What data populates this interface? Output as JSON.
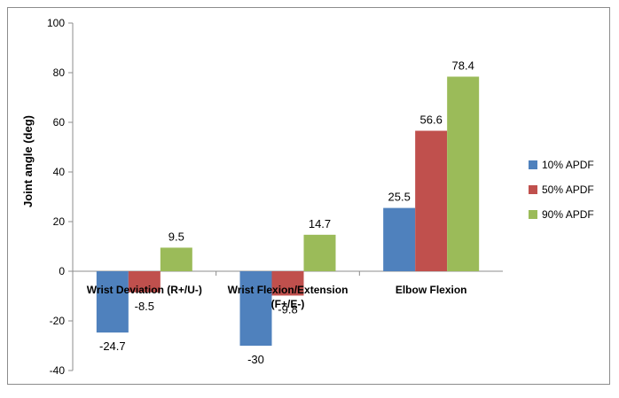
{
  "chart_data": {
    "type": "bar",
    "title": "",
    "xlabel": "",
    "ylabel": "Joint angle (deg)",
    "ylim": [
      -40,
      100
    ],
    "yticks": [
      -40,
      -20,
      0,
      20,
      40,
      60,
      80,
      100
    ],
    "grid": false,
    "legend_position": "right",
    "categories": [
      [
        "Wrist Deviation (R+/U-)"
      ],
      [
        "Wrist Flexion/Extension",
        "(F+/E-)"
      ],
      [
        "Elbow Flexion"
      ]
    ],
    "series": [
      {
        "name": "10% APDF",
        "color": "#4f81bd",
        "values": [
          -24.7,
          -30,
          25.5
        ],
        "labels": [
          "-24.7",
          "-30",
          "25.5"
        ]
      },
      {
        "name": "50% APDF",
        "color": "#c0504d",
        "values": [
          -8.5,
          -9.8,
          56.6
        ],
        "labels": [
          "-8.5",
          "-9.8",
          "56.6"
        ]
      },
      {
        "name": "90% APDF",
        "color": "#9bbb59",
        "values": [
          9.5,
          14.7,
          78.4
        ],
        "labels": [
          "9.5",
          "14.7",
          "78.4"
        ]
      }
    ]
  }
}
